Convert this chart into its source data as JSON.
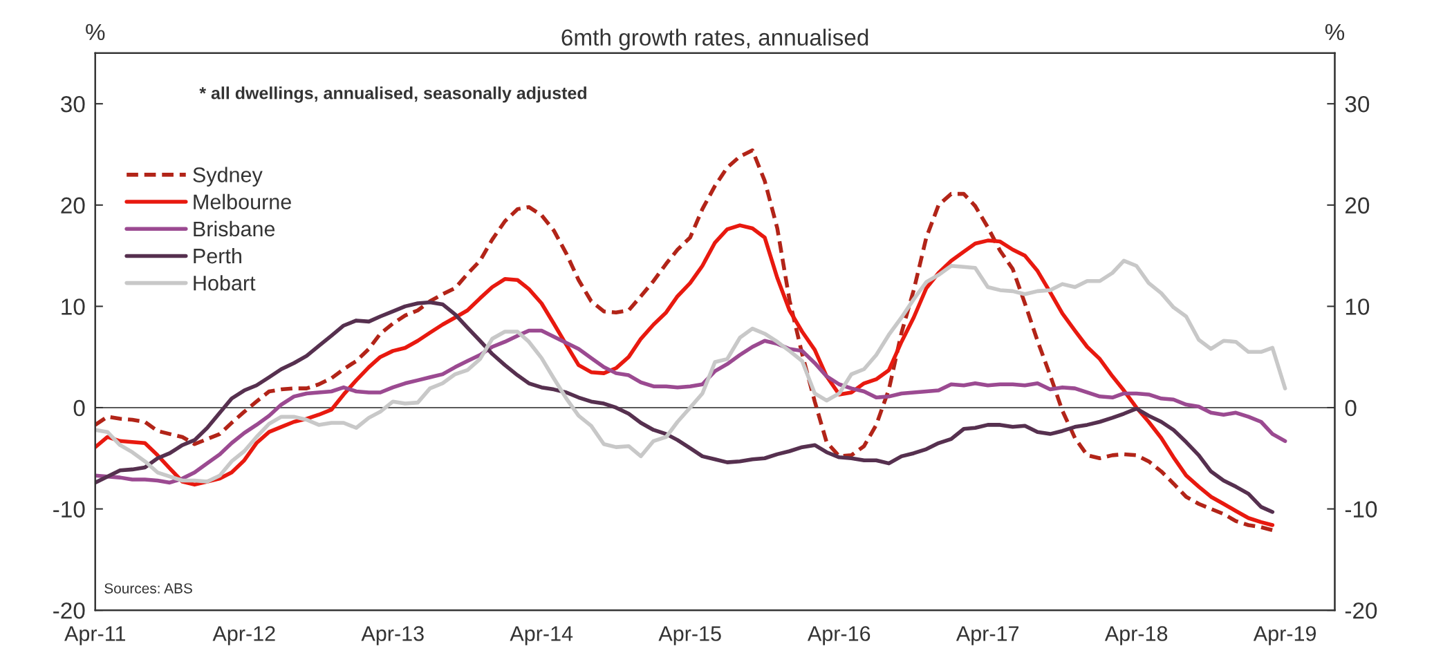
{
  "chart_data": {
    "type": "line",
    "title": "6mth growth rates, annualised",
    "ylabel": "%",
    "y2label": "%",
    "annotations": [
      "* all dwellings, annualised, seasonally adjusted",
      "Sources: ABS"
    ],
    "x": [
      "2011-04",
      "2011-05",
      "2011-06",
      "2011-07",
      "2011-08",
      "2011-09",
      "2011-10",
      "2011-11",
      "2011-12",
      "2012-01",
      "2012-02",
      "2012-03",
      "2012-04",
      "2012-05",
      "2012-06",
      "2012-07",
      "2012-08",
      "2012-09",
      "2012-10",
      "2012-11",
      "2012-12",
      "2013-01",
      "2013-02",
      "2013-03",
      "2013-04",
      "2013-05",
      "2013-06",
      "2013-07",
      "2013-08",
      "2013-09",
      "2013-10",
      "2013-11",
      "2013-12",
      "2014-01",
      "2014-02",
      "2014-03",
      "2014-04",
      "2014-05",
      "2014-06",
      "2014-07",
      "2014-08",
      "2014-09",
      "2014-10",
      "2014-11",
      "2014-12",
      "2015-01",
      "2015-02",
      "2015-03",
      "2015-04",
      "2015-05",
      "2015-06",
      "2015-07",
      "2015-08",
      "2015-09",
      "2015-10",
      "2015-11",
      "2015-12",
      "2016-01",
      "2016-02",
      "2016-03",
      "2016-04",
      "2016-05",
      "2016-06",
      "2016-07",
      "2016-08",
      "2016-09",
      "2016-10",
      "2016-11",
      "2016-12",
      "2017-01",
      "2017-02",
      "2017-03",
      "2017-04",
      "2017-05",
      "2017-06",
      "2017-07",
      "2017-08",
      "2017-09",
      "2017-10",
      "2017-11",
      "2017-12",
      "2018-01",
      "2018-02",
      "2018-03",
      "2018-04",
      "2018-05",
      "2018-06",
      "2018-07",
      "2018-08",
      "2018-09",
      "2018-10",
      "2018-11",
      "2018-12",
      "2019-01",
      "2019-02",
      "2019-03",
      "2019-04"
    ],
    "series": [
      {
        "name": "Sydney",
        "color": "#b22418",
        "line_style": "dashed",
        "values": [
          -1.7,
          -0.9,
          -1.1,
          -1.2,
          -1.4,
          -2.3,
          -2.6,
          -2.9,
          -3.6,
          -3.1,
          -2.6,
          -1.5,
          -0.4,
          0.6,
          1.6,
          1.8,
          1.9,
          1.9,
          2.3,
          2.9,
          3.8,
          4.6,
          5.8,
          7.3,
          8.3,
          9.1,
          9.6,
          10.5,
          11.2,
          11.8,
          13.2,
          14.5,
          16.6,
          18.4,
          19.6,
          19.8,
          19.0,
          17.5,
          15.2,
          12.6,
          10.5,
          9.5,
          9.4,
          9.6,
          11.0,
          12.5,
          14.2,
          15.6,
          16.8,
          19.6,
          21.9,
          23.7,
          24.8,
          25.4,
          22.4,
          17.7,
          10.6,
          5.3,
          0.6,
          -3.4,
          -4.8,
          -4.7,
          -3.8,
          -1.7,
          1.8,
          7.4,
          11.6,
          16.8,
          20.0,
          21.1,
          21.1,
          19.9,
          17.8,
          15.5,
          13.7,
          10.3,
          6.6,
          3.2,
          -0.3,
          -3.0,
          -4.7,
          -5.0,
          -4.7,
          -4.6,
          -4.7,
          -5.3,
          -6.3,
          -7.5,
          -8.8,
          -9.5,
          -10.0,
          -10.5,
          -11.2,
          -11.6,
          -11.8,
          -12.1,
          null
        ]
      },
      {
        "name": "Melbourne",
        "color": "#e8190f",
        "line_style": "solid",
        "values": [
          -3.9,
          -2.9,
          -3.3,
          -3.4,
          -3.5,
          -4.7,
          -6.0,
          -7.3,
          -7.6,
          -7.3,
          -7.0,
          -6.4,
          -5.2,
          -3.5,
          -2.4,
          -1.9,
          -1.4,
          -1.1,
          -0.7,
          -0.2,
          1.3,
          2.7,
          4.0,
          5.0,
          5.6,
          5.9,
          6.6,
          7.4,
          8.2,
          8.9,
          9.6,
          10.8,
          11.9,
          12.7,
          12.6,
          11.7,
          10.3,
          8.3,
          6.2,
          4.2,
          3.5,
          3.4,
          3.9,
          5.0,
          6.8,
          8.2,
          9.4,
          11.0,
          12.3,
          14.0,
          16.3,
          17.6,
          18.0,
          17.7,
          16.8,
          12.8,
          9.6,
          7.5,
          5.7,
          3.1,
          1.3,
          1.5,
          2.4,
          2.8,
          3.7,
          6.5,
          8.9,
          11.8,
          13.3,
          14.5,
          15.4,
          16.2,
          16.5,
          16.4,
          15.6,
          15.0,
          13.5,
          11.4,
          9.3,
          7.6,
          6.0,
          4.8,
          3.1,
          1.7,
          0.0,
          -1.4,
          -3.0,
          -4.9,
          -6.7,
          -7.8,
          -8.8,
          -9.5,
          -10.2,
          -10.9,
          -11.3,
          -11.6,
          null
        ]
      },
      {
        "name": "Brisbane",
        "color": "#9b4a91",
        "line_style": "solid",
        "values": [
          -6.7,
          -6.8,
          -6.9,
          -7.1,
          -7.1,
          -7.2,
          -7.4,
          -7.0,
          -6.4,
          -5.5,
          -4.6,
          -3.5,
          -2.5,
          -1.7,
          -0.8,
          0.3,
          1.1,
          1.4,
          1.5,
          1.6,
          2.0,
          1.6,
          1.5,
          1.5,
          2.0,
          2.4,
          2.7,
          3.0,
          3.3,
          4.0,
          4.6,
          5.2,
          6.0,
          6.5,
          7.1,
          7.6,
          7.6,
          7.0,
          6.4,
          5.8,
          4.9,
          4.0,
          3.4,
          3.2,
          2.5,
          2.1,
          2.1,
          2.0,
          2.1,
          2.3,
          3.6,
          4.3,
          5.2,
          6.0,
          6.6,
          6.3,
          5.8,
          5.6,
          4.4,
          3.1,
          2.3,
          1.9,
          1.6,
          1.0,
          1.1,
          1.4,
          1.5,
          1.6,
          1.7,
          2.3,
          2.2,
          2.4,
          2.2,
          2.3,
          2.3,
          2.2,
          2.4,
          1.8,
          2.0,
          1.9,
          1.5,
          1.1,
          1.0,
          1.4,
          1.4,
          1.3,
          0.9,
          0.8,
          0.3,
          0.1,
          -0.5,
          -0.7,
          -0.5,
          -0.9,
          -1.4,
          -2.6,
          -3.3
        ]
      },
      {
        "name": "Perth",
        "color": "#56304f",
        "line_style": "solid",
        "values": [
          -7.4,
          -6.8,
          -6.2,
          -6.1,
          -5.9,
          -5.0,
          -4.5,
          -3.7,
          -3.2,
          -2.0,
          -0.5,
          0.9,
          1.7,
          2.2,
          3.0,
          3.8,
          4.4,
          5.1,
          6.1,
          7.1,
          8.1,
          8.6,
          8.5,
          9.0,
          9.5,
          10.0,
          10.3,
          10.4,
          10.2,
          9.2,
          7.9,
          6.6,
          5.3,
          4.2,
          3.2,
          2.4,
          2.0,
          1.8,
          1.5,
          1.0,
          0.6,
          0.4,
          0.0,
          -0.6,
          -1.5,
          -2.2,
          -2.6,
          -3.2,
          -4.0,
          -4.8,
          -5.1,
          -5.4,
          -5.3,
          -5.1,
          -5.0,
          -4.6,
          -4.3,
          -3.9,
          -3.7,
          -4.4,
          -4.9,
          -5.0,
          -5.2,
          -5.2,
          -5.5,
          -4.8,
          -4.5,
          -4.1,
          -3.5,
          -3.1,
          -2.1,
          -2.0,
          -1.7,
          -1.7,
          -1.9,
          -1.8,
          -2.4,
          -2.6,
          -2.3,
          -1.9,
          -1.7,
          -1.4,
          -1.0,
          -0.6,
          -0.1,
          -0.8,
          -1.4,
          -2.2,
          -3.4,
          -4.7,
          -6.3,
          -7.2,
          -7.8,
          -8.5,
          -9.8,
          -10.3,
          null
        ]
      },
      {
        "name": "Hobart",
        "color": "#c8c8c8",
        "line_style": "solid",
        "values": [
          -2.2,
          -2.4,
          -3.7,
          -4.4,
          -5.3,
          -6.4,
          -6.8,
          -7.2,
          -7.2,
          -7.3,
          -6.7,
          -5.3,
          -4.3,
          -2.9,
          -1.6,
          -0.9,
          -0.9,
          -1.2,
          -1.7,
          -1.5,
          -1.5,
          -2.0,
          -1.0,
          -0.4,
          0.6,
          0.4,
          0.5,
          1.9,
          2.4,
          3.3,
          3.7,
          4.8,
          6.8,
          7.5,
          7.5,
          6.5,
          4.9,
          2.9,
          0.9,
          -0.8,
          -1.8,
          -3.6,
          -3.9,
          -3.8,
          -4.8,
          -3.3,
          -2.9,
          -1.4,
          0.0,
          1.4,
          4.5,
          4.8,
          6.9,
          7.8,
          7.3,
          6.5,
          5.6,
          4.6,
          1.4,
          0.7,
          1.4,
          3.3,
          3.8,
          5.2,
          7.2,
          8.9,
          10.7,
          12.4,
          13.1,
          14.0,
          13.9,
          13.8,
          11.9,
          11.6,
          11.5,
          11.2,
          11.5,
          11.6,
          12.2,
          11.9,
          12.5,
          12.5,
          13.3,
          14.5,
          14.0,
          12.3,
          11.3,
          9.9,
          9.0,
          6.7,
          5.8,
          6.6,
          6.5,
          5.5,
          5.5,
          5.9,
          1.9
        ]
      }
    ],
    "xlim": [
      "2011-04",
      "2019-08"
    ],
    "xticks": [
      {
        "value": "2011-04",
        "label": "Apr-11"
      },
      {
        "value": "2012-04",
        "label": "Apr-12"
      },
      {
        "value": "2013-04",
        "label": "Apr-13"
      },
      {
        "value": "2014-04",
        "label": "Apr-14"
      },
      {
        "value": "2015-04",
        "label": "Apr-15"
      },
      {
        "value": "2016-04",
        "label": "Apr-16"
      },
      {
        "value": "2017-04",
        "label": "Apr-17"
      },
      {
        "value": "2018-04",
        "label": "Apr-18"
      },
      {
        "value": "2019-04",
        "label": "Apr-19"
      }
    ],
    "ylim": [
      -20,
      35
    ],
    "yticks": [
      -20,
      -10,
      0,
      10,
      20,
      30
    ],
    "y2lim": [
      -20,
      35
    ],
    "y2ticks": [
      -20,
      -10,
      0,
      10,
      20,
      30
    ],
    "ref_lines": [
      {
        "axis": "y",
        "value": 0,
        "color": "#595959"
      }
    ],
    "grid": false,
    "legend": "top left"
  }
}
